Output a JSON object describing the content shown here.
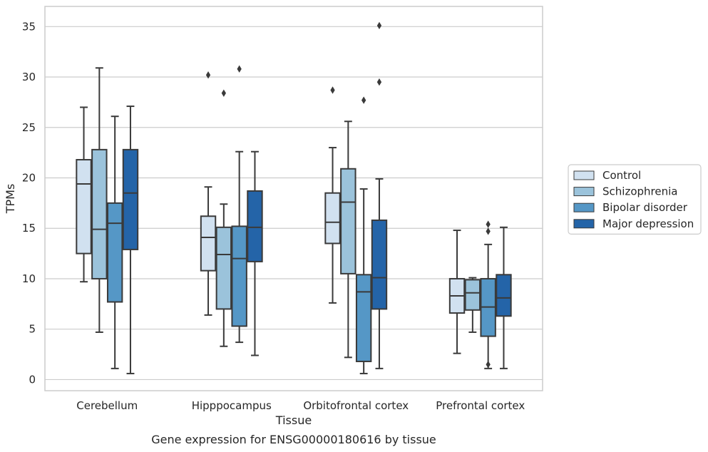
{
  "caption": "Gene expression for ENSG00000180616 by tissue",
  "chart_data": {
    "type": "box",
    "xlabel": "Tissue",
    "ylabel": "TPMs",
    "ylim": [
      -1.1,
      37
    ],
    "yticks": [
      0,
      5,
      10,
      15,
      20,
      25,
      30,
      35
    ],
    "grid": "horizontal",
    "legend_position": "right",
    "categories": [
      "Cerebellum",
      "Hipppocampus",
      "Orbitofrontal cortex",
      "Prefrontal cortex"
    ],
    "series": [
      {
        "name": "Control",
        "color": "#d1e1f0",
        "boxes": [
          {
            "whislo": 9.7,
            "q1": 12.5,
            "med": 19.4,
            "q3": 21.8,
            "whishi": 27.0,
            "fliers": []
          },
          {
            "whislo": 6.4,
            "q1": 10.8,
            "med": 14.1,
            "q3": 16.2,
            "whishi": 19.1,
            "fliers": [
              30.2
            ]
          },
          {
            "whislo": 7.6,
            "q1": 13.5,
            "med": 15.6,
            "q3": 18.5,
            "whishi": 23.0,
            "fliers": [
              28.7
            ]
          },
          {
            "whislo": 2.6,
            "q1": 6.6,
            "med": 8.3,
            "q3": 10.0,
            "whishi": 14.8,
            "fliers": []
          }
        ]
      },
      {
        "name": "Schizophrenia",
        "color": "#9bc3db",
        "boxes": [
          {
            "whislo": 4.7,
            "q1": 10.0,
            "med": 14.9,
            "q3": 22.8,
            "whishi": 30.9,
            "fliers": []
          },
          {
            "whislo": 3.3,
            "q1": 7.0,
            "med": 12.4,
            "q3": 15.1,
            "whishi": 17.4,
            "fliers": [
              28.4
            ]
          },
          {
            "whislo": 2.2,
            "q1": 10.5,
            "med": 17.6,
            "q3": 20.9,
            "whishi": 25.6,
            "fliers": []
          },
          {
            "whislo": 4.7,
            "q1": 6.9,
            "med": 8.6,
            "q3": 9.9,
            "whishi": 10.1,
            "fliers": []
          }
        ]
      },
      {
        "name": "Bipolar disorder",
        "color": "#5597c6",
        "boxes": [
          {
            "whislo": 1.1,
            "q1": 7.7,
            "med": 15.5,
            "q3": 17.5,
            "whishi": 26.1,
            "fliers": []
          },
          {
            "whislo": 3.7,
            "q1": 5.3,
            "med": 12.0,
            "q3": 15.2,
            "whishi": 22.6,
            "fliers": [
              30.8
            ]
          },
          {
            "whislo": 0.6,
            "q1": 1.8,
            "med": 8.7,
            "q3": 10.4,
            "whishi": 18.9,
            "fliers": [
              27.7
            ]
          },
          {
            "whislo": 1.1,
            "q1": 4.3,
            "med": 7.2,
            "q3": 10.0,
            "whishi": 13.4,
            "fliers": [
              1.5,
              14.7,
              15.4
            ]
          }
        ]
      },
      {
        "name": "Major depression",
        "color": "#2464a8",
        "boxes": [
          {
            "whislo": 0.6,
            "q1": 12.9,
            "med": 18.5,
            "q3": 22.8,
            "whishi": 27.1,
            "fliers": []
          },
          {
            "whislo": 2.4,
            "q1": 11.7,
            "med": 15.1,
            "q3": 18.7,
            "whishi": 22.6,
            "fliers": []
          },
          {
            "whislo": 1.1,
            "q1": 7.0,
            "med": 10.1,
            "q3": 15.8,
            "whishi": 19.9,
            "fliers": [
              29.5,
              35.1
            ]
          },
          {
            "whislo": 1.1,
            "q1": 6.3,
            "med": 8.1,
            "q3": 10.4,
            "whishi": 15.1,
            "fliers": []
          }
        ]
      }
    ]
  }
}
